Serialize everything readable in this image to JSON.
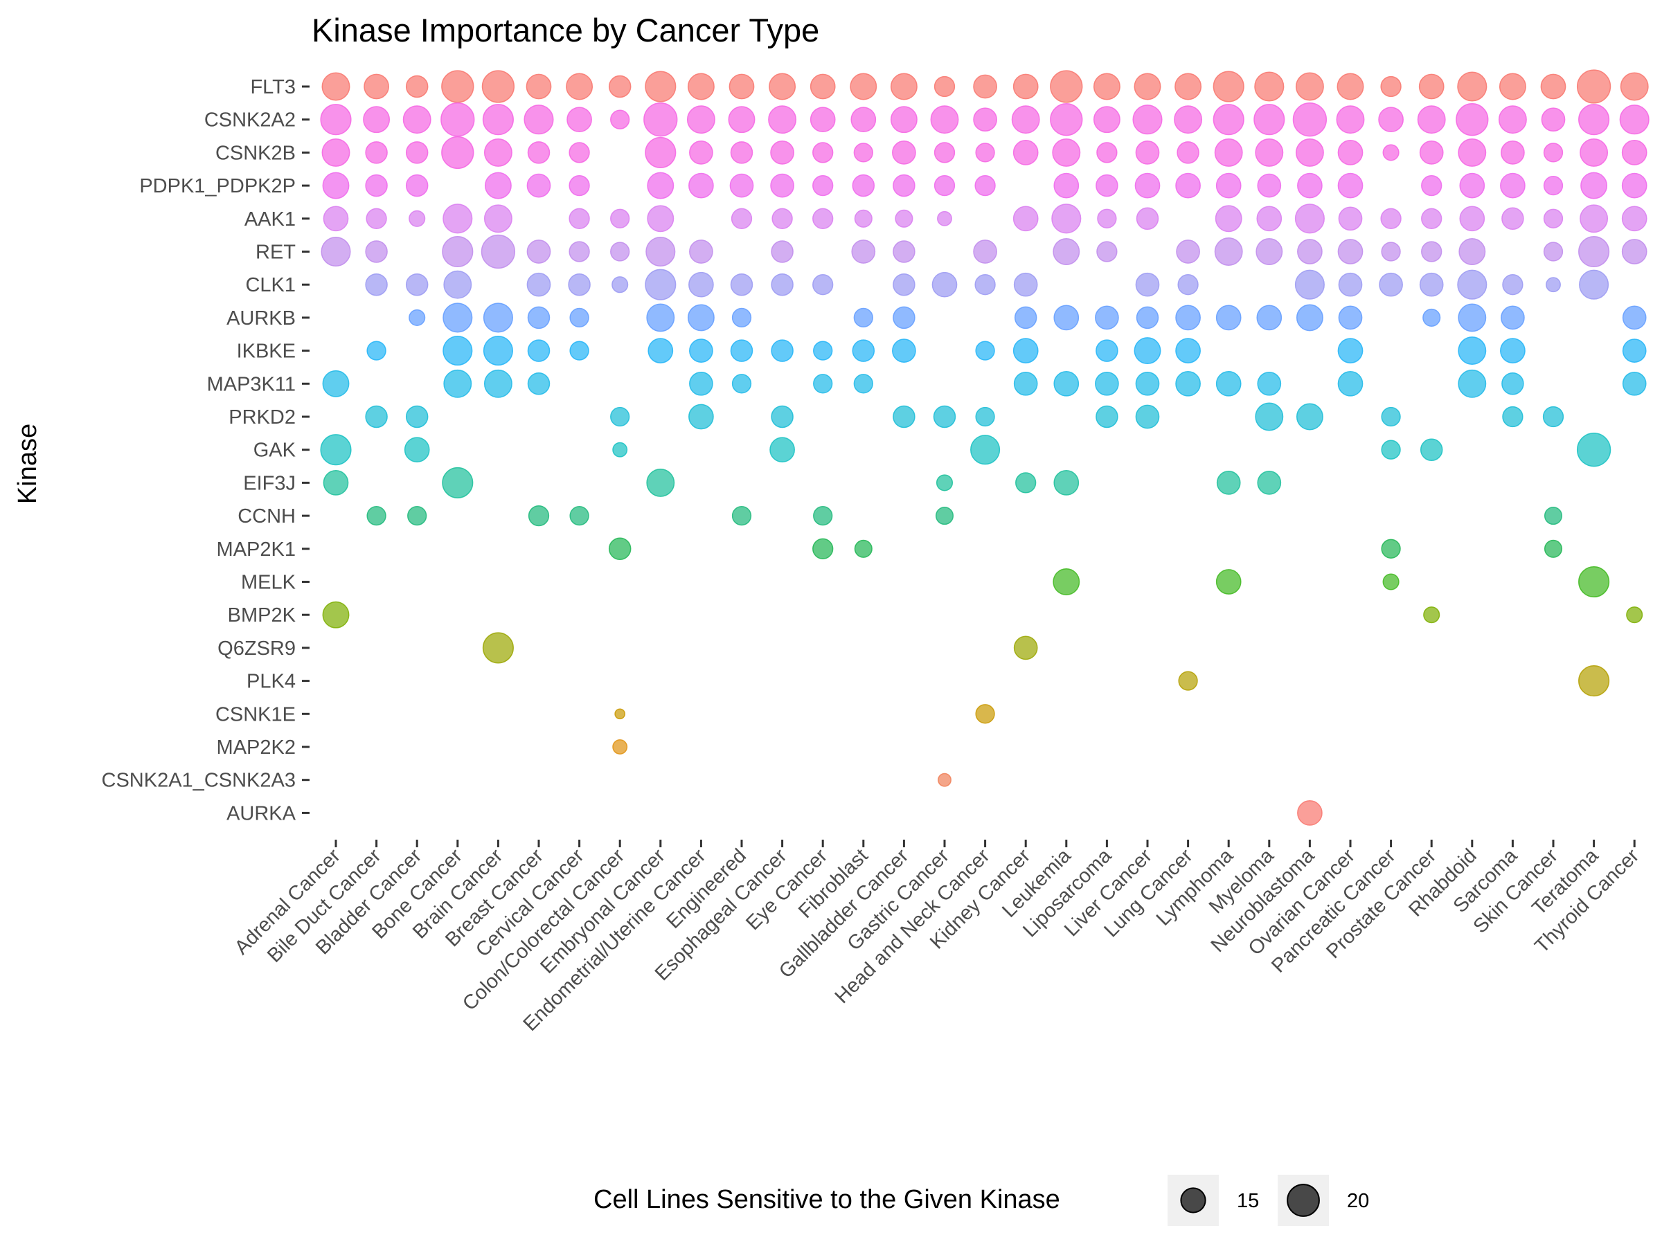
{
  "chart_data": {
    "type": "scatter",
    "title": "Kinase Importance by Cancer Type",
    "xlabel": "",
    "ylabel": "Kinase",
    "grid": false,
    "legend": {
      "title": "Cell Lines Sensitive to the Given Kinase",
      "position": "bottom",
      "entries": [
        {
          "label": "15",
          "value": 15
        },
        {
          "label": "20",
          "value": 20
        }
      ]
    },
    "size_range": [
      4,
      22
    ],
    "categories_x": [
      "Adrenal Cancer",
      "Bile Duct Cancer",
      "Bladder Cancer",
      "Bone Cancer",
      "Brain Cancer",
      "Breast Cancer",
      "Cervical Cancer",
      "Colon/Colorectal Cancer",
      "Embryonal Cancer",
      "Endometrial/Uterine Cancer",
      "Engineered",
      "Esophageal Cancer",
      "Eye Cancer",
      "Fibroblast",
      "Gallbladder Cancer",
      "Gastric Cancer",
      "Head and Neck Cancer",
      "Kidney Cancer",
      "Leukemia",
      "Liposarcoma",
      "Liver Cancer",
      "Lung Cancer",
      "Lymphoma",
      "Myeloma",
      "Neuroblastoma",
      "Ovarian Cancer",
      "Pancreatic Cancer",
      "Prostate Cancer",
      "Rhabdoid",
      "Sarcoma",
      "Skin Cancer",
      "Teratoma",
      "Thyroid Cancer"
    ],
    "categories_y": [
      "FLT3",
      "CSNK2A2",
      "CSNK2B",
      "PDPK1_PDPK2P",
      "AAK1",
      "RET",
      "CLK1",
      "AURKB",
      "IKBKE",
      "MAP3K11",
      "PRKD2",
      "GAK",
      "EIF3J",
      "CCNH",
      "MAP2K1",
      "MELK",
      "BMP2K",
      "Q6ZSR9",
      "PLK4",
      "CSNK1E",
      "MAP2K2",
      "CSNK2A1_CSNK2A3",
      "AURKA"
    ],
    "series_colors": {
      "FLT3": "#F8766D",
      "CSNK2A2": "#F564E3",
      "CSNK2B": "#F564E3",
      "PDPK1_PDPK2P": "#EE67EC",
      "AAK1": "#D97DF0",
      "RET": "#C08BEC",
      "CLK1": "#9A99F2",
      "AURKB": "#619CFF",
      "IKBKE": "#21B4F7",
      "MAP3K11": "#1DB9E8",
      "PRKD2": "#19BCD6",
      "GAK": "#16C1C2",
      "EIF3J": "#1BBF9A",
      "CCNH": "#1DB87A",
      "MAP2K1": "#1FB552",
      "MELK": "#3FB81F",
      "BMP2K": "#7CAE00",
      "Q6ZSR9": "#9AA600",
      "PLK4": "#B39F00",
      "CSNK1E": "#C99800",
      "MAP2K2": "#E09210",
      "CSNK2A1_CSNK2A3": "#F07F57",
      "AURKA": "#F8766D"
    },
    "points": [
      {
        "kinase": "FLT3",
        "values": [
          17,
          15,
          13,
          20,
          20,
          15,
          16,
          13,
          19,
          16,
          15,
          16,
          15,
          16,
          16,
          12,
          14,
          15,
          20,
          16,
          16,
          16,
          19,
          18,
          17,
          16,
          12,
          15,
          18,
          16,
          15,
          21,
          17
        ]
      },
      {
        "kinase": "CSNK2A2",
        "values": [
          19,
          16,
          17,
          21,
          19,
          18,
          15,
          11,
          21,
          17,
          16,
          17,
          15,
          15,
          16,
          17,
          14,
          17,
          20,
          16,
          18,
          17,
          19,
          19,
          21,
          17,
          15,
          17,
          20,
          17,
          14,
          19,
          18
        ]
      },
      {
        "kinase": "CSNK2B",
        "values": [
          17,
          13,
          13,
          20,
          17,
          13,
          12,
          null,
          19,
          14,
          13,
          14,
          12,
          11,
          14,
          12,
          11,
          15,
          17,
          12,
          14,
          13,
          17,
          17,
          17,
          15,
          9,
          14,
          17,
          14,
          11,
          17,
          15
        ]
      },
      {
        "kinase": "PDPK1_PDPK2P",
        "values": [
          16,
          13,
          13,
          null,
          16,
          14,
          12,
          null,
          16,
          15,
          14,
          14,
          12,
          13,
          13,
          12,
          12,
          null,
          15,
          13,
          15,
          15,
          15,
          14,
          15,
          15,
          null,
          12,
          15,
          15,
          11,
          16,
          15
        ]
      },
      {
        "kinase": "AAK1",
        "values": [
          15,
          12,
          9,
          18,
          17,
          null,
          12,
          11,
          16,
          null,
          12,
          12,
          12,
          10,
          10,
          8,
          null,
          15,
          18,
          11,
          13,
          null,
          16,
          15,
          18,
          14,
          12,
          12,
          15,
          13,
          11,
          17,
          15
        ]
      },
      {
        "kinase": "RET",
        "values": [
          18,
          13,
          null,
          19,
          21,
          14,
          12,
          11,
          18,
          14,
          null,
          13,
          null,
          14,
          13,
          null,
          14,
          null,
          16,
          12,
          null,
          14,
          17,
          16,
          15,
          15,
          11,
          12,
          16,
          null,
          11,
          19,
          15
        ]
      },
      {
        "kinase": "CLK1",
        "values": [
          null,
          13,
          13,
          17,
          null,
          14,
          13,
          9,
          19,
          15,
          13,
          13,
          12,
          null,
          13,
          15,
          12,
          14,
          null,
          null,
          14,
          12,
          null,
          null,
          18,
          14,
          14,
          14,
          18,
          12,
          8,
          18,
          null
        ]
      },
      {
        "kinase": "AURKB",
        "values": [
          null,
          null,
          9,
          18,
          18,
          13,
          11,
          null,
          17,
          16,
          11,
          null,
          null,
          11,
          13,
          null,
          null,
          13,
          15,
          14,
          13,
          15,
          15,
          15,
          16,
          14,
          null,
          10,
          17,
          14,
          null,
          null,
          14
        ]
      },
      {
        "kinase": "IKBKE",
        "values": [
          null,
          11,
          null,
          18,
          18,
          13,
          11,
          null,
          15,
          14,
          13,
          13,
          11,
          13,
          14,
          null,
          11,
          15,
          null,
          13,
          16,
          15,
          null,
          null,
          null,
          15,
          null,
          null,
          17,
          15,
          null,
          null,
          14
        ]
      },
      {
        "kinase": "MAP3K11",
        "values": [
          16,
          null,
          null,
          17,
          17,
          13,
          null,
          null,
          null,
          14,
          11,
          null,
          11,
          11,
          null,
          null,
          null,
          14,
          15,
          14,
          14,
          15,
          15,
          14,
          null,
          15,
          null,
          null,
          17,
          13,
          null,
          null,
          14
        ]
      },
      {
        "kinase": "PRKD2",
        "values": [
          null,
          13,
          13,
          null,
          null,
          null,
          null,
          11,
          null,
          15,
          null,
          13,
          null,
          null,
          13,
          13,
          11,
          null,
          null,
          13,
          14,
          null,
          null,
          17,
          16,
          null,
          11,
          null,
          null,
          12,
          12,
          null,
          null
        ]
      },
      {
        "kinase": "GAK",
        "values": [
          19,
          null,
          15,
          null,
          null,
          null,
          null,
          8,
          null,
          null,
          null,
          15,
          null,
          null,
          null,
          null,
          18,
          null,
          null,
          null,
          null,
          null,
          null,
          null,
          null,
          null,
          11,
          13,
          null,
          null,
          null,
          21,
          null
        ]
      },
      {
        "kinase": "EIF3J",
        "values": [
          15,
          null,
          null,
          19,
          null,
          null,
          null,
          null,
          17,
          null,
          null,
          null,
          null,
          null,
          null,
          9,
          null,
          12,
          15,
          null,
          null,
          null,
          14,
          14,
          null,
          null,
          null,
          null,
          null,
          null,
          null,
          null,
          null
        ]
      },
      {
        "kinase": "CCNH",
        "values": [
          null,
          11,
          11,
          null,
          null,
          12,
          11,
          null,
          null,
          null,
          11,
          null,
          11,
          null,
          null,
          10,
          null,
          null,
          null,
          null,
          null,
          null,
          null,
          null,
          null,
          null,
          null,
          null,
          null,
          null,
          10,
          null,
          null
        ]
      },
      {
        "kinase": "MAP2K1",
        "values": [
          null,
          null,
          null,
          null,
          null,
          null,
          null,
          13,
          null,
          null,
          null,
          null,
          12,
          10,
          null,
          null,
          null,
          null,
          null,
          null,
          null,
          null,
          null,
          null,
          null,
          null,
          11,
          null,
          null,
          null,
          10,
          null,
          null
        ]
      },
      {
        "kinase": "MELK",
        "values": [
          null,
          null,
          null,
          null,
          null,
          null,
          null,
          null,
          null,
          null,
          null,
          null,
          null,
          null,
          null,
          null,
          null,
          null,
          16,
          null,
          null,
          null,
          15,
          null,
          null,
          null,
          9,
          null,
          null,
          null,
          null,
          19,
          null
        ]
      },
      {
        "kinase": "BMP2K",
        "values": [
          16,
          null,
          null,
          null,
          null,
          null,
          null,
          null,
          null,
          null,
          null,
          null,
          null,
          null,
          null,
          null,
          null,
          null,
          null,
          null,
          null,
          null,
          null,
          null,
          null,
          null,
          null,
          9,
          null,
          null,
          null,
          null,
          9
        ]
      },
      {
        "kinase": "Q6ZSR9",
        "values": [
          null,
          null,
          null,
          null,
          19,
          null,
          null,
          null,
          null,
          null,
          null,
          null,
          null,
          null,
          null,
          null,
          null,
          14,
          null,
          null,
          null,
          null,
          null,
          null,
          null,
          null,
          null,
          null,
          null,
          null,
          null,
          null,
          null
        ]
      },
      {
        "kinase": "PLK4",
        "values": [
          null,
          null,
          null,
          null,
          null,
          null,
          null,
          null,
          null,
          null,
          null,
          null,
          null,
          null,
          null,
          null,
          null,
          null,
          null,
          null,
          null,
          11,
          null,
          null,
          null,
          null,
          null,
          null,
          null,
          null,
          null,
          19,
          null
        ]
      },
      {
        "kinase": "CSNK1E",
        "values": [
          null,
          null,
          null,
          null,
          null,
          null,
          null,
          5,
          null,
          null,
          null,
          null,
          null,
          null,
          null,
          null,
          11,
          null,
          null,
          null,
          null,
          null,
          null,
          null,
          null,
          null,
          null,
          null,
          null,
          null,
          null,
          null,
          null
        ]
      },
      {
        "kinase": "MAP2K2",
        "values": [
          null,
          null,
          null,
          null,
          null,
          null,
          null,
          8,
          null,
          null,
          null,
          null,
          null,
          null,
          null,
          null,
          null,
          null,
          null,
          null,
          null,
          null,
          null,
          null,
          null,
          null,
          null,
          null,
          null,
          null,
          null,
          null,
          null
        ]
      },
      {
        "kinase": "CSNK2A1_CSNK2A3",
        "values": [
          null,
          null,
          null,
          null,
          null,
          null,
          null,
          null,
          null,
          null,
          null,
          null,
          null,
          null,
          null,
          7,
          null,
          null,
          null,
          null,
          null,
          null,
          null,
          null,
          null,
          null,
          null,
          null,
          null,
          null,
          null,
          null,
          null
        ]
      },
      {
        "kinase": "AURKA",
        "values": [
          null,
          null,
          null,
          null,
          null,
          null,
          null,
          null,
          null,
          null,
          null,
          null,
          null,
          null,
          null,
          null,
          null,
          null,
          null,
          null,
          null,
          null,
          null,
          null,
          15,
          null,
          null,
          null,
          null,
          null,
          null,
          null,
          null
        ]
      }
    ]
  }
}
